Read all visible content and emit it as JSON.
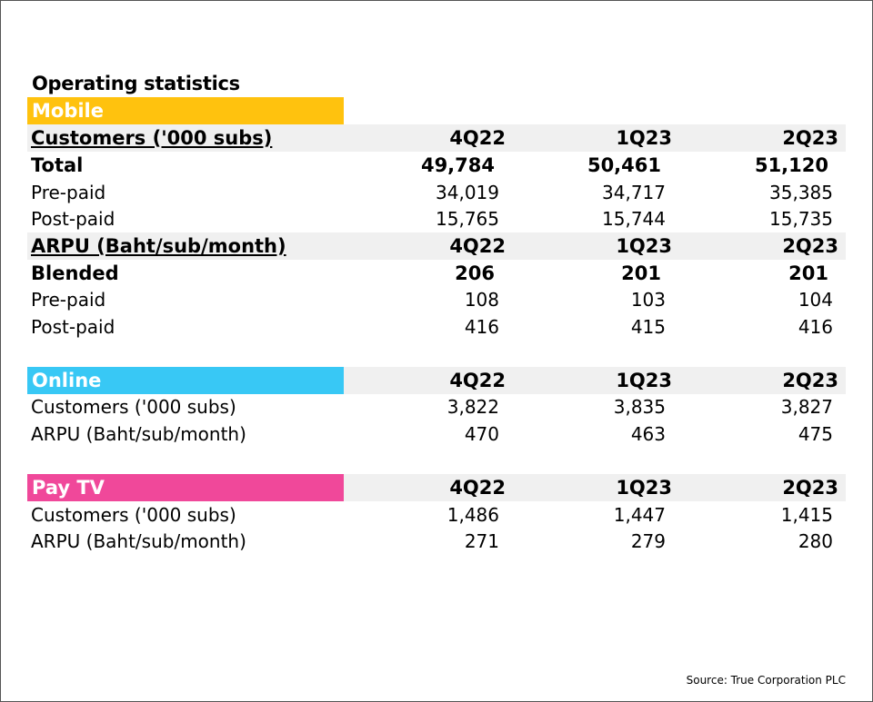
{
  "title": "Operating statistics",
  "colors": {
    "mobile": "#ffc20e",
    "online": "#38c8f5",
    "paytv": "#f0489a",
    "row_shade": "#f0f0f0"
  },
  "mobile": {
    "section": "Mobile",
    "customers_header": {
      "label": "Customers ('000 subs)",
      "q": [
        "4Q22",
        "1Q23",
        "2Q23"
      ]
    },
    "total": {
      "label": "Total",
      "v": [
        "49,784",
        "50,461",
        "51,120"
      ]
    },
    "prepaid": {
      "label": "Pre-paid",
      "v": [
        "34,019",
        "34,717",
        "35,385"
      ]
    },
    "postpaid": {
      "label": "Post-paid",
      "v": [
        "15,765",
        "15,744",
        "15,735"
      ]
    },
    "arpu_header": {
      "label": "ARPU (Baht/sub/month)",
      "q": [
        "4Q22",
        "1Q23",
        "2Q23"
      ]
    },
    "blended": {
      "label": "Blended",
      "v": [
        "206",
        "201",
        "201"
      ]
    },
    "arpu_prepaid": {
      "label": "Pre-paid",
      "v": [
        "108",
        "103",
        "104"
      ]
    },
    "arpu_postpaid": {
      "label": "Post-paid",
      "v": [
        "416",
        "415",
        "416"
      ]
    }
  },
  "online": {
    "section": "Online",
    "q": [
      "4Q22",
      "1Q23",
      "2Q23"
    ],
    "customers": {
      "label": "Customers ('000 subs)",
      "v": [
        "3,822",
        "3,835",
        "3,827"
      ]
    },
    "arpu": {
      "label": "ARPU (Baht/sub/month)",
      "v": [
        "470",
        "463",
        "475"
      ]
    }
  },
  "paytv": {
    "section": "Pay TV",
    "q": [
      "4Q22",
      "1Q23",
      "2Q23"
    ],
    "customers": {
      "label": "Customers ('000 subs)",
      "v": [
        "1,486",
        "1,447",
        "1,415"
      ]
    },
    "arpu": {
      "label": "ARPU (Baht/sub/month)",
      "v": [
        "271",
        "279",
        "280"
      ]
    }
  },
  "source": "Source: True Corporation PLC"
}
